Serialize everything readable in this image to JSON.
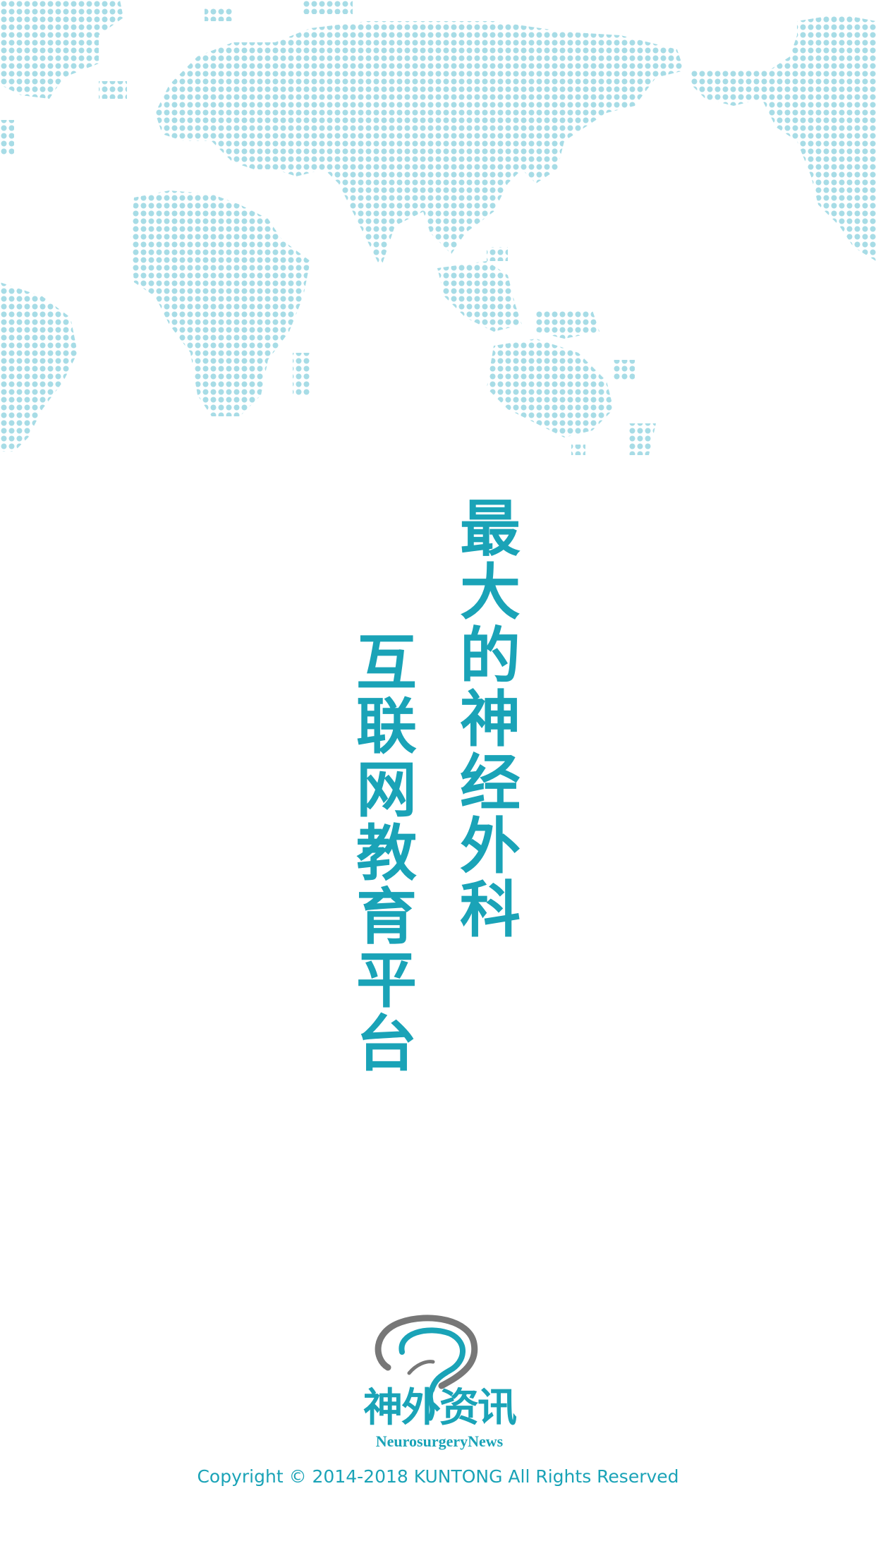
{
  "colors": {
    "accent": "#1aa3b7",
    "map_dots": "#a7dce6",
    "logo_gray": "#777777",
    "background": "#ffffff"
  },
  "slogan": {
    "line1": [
      "最",
      "大",
      "的",
      "神",
      "经",
      "外",
      "科"
    ],
    "line2": [
      "互",
      "联",
      "网",
      "教",
      "育",
      "平",
      "台"
    ]
  },
  "logo": {
    "icon": "brain-question-icon",
    "name_cn": "神外资讯",
    "name_en": "NeurosurgeryNews"
  },
  "footer": {
    "copyright": "Copyright © 2014-2018 KUNTONG All Rights Reserved"
  },
  "decor": {
    "map_icon": "world-map-dots-icon"
  }
}
